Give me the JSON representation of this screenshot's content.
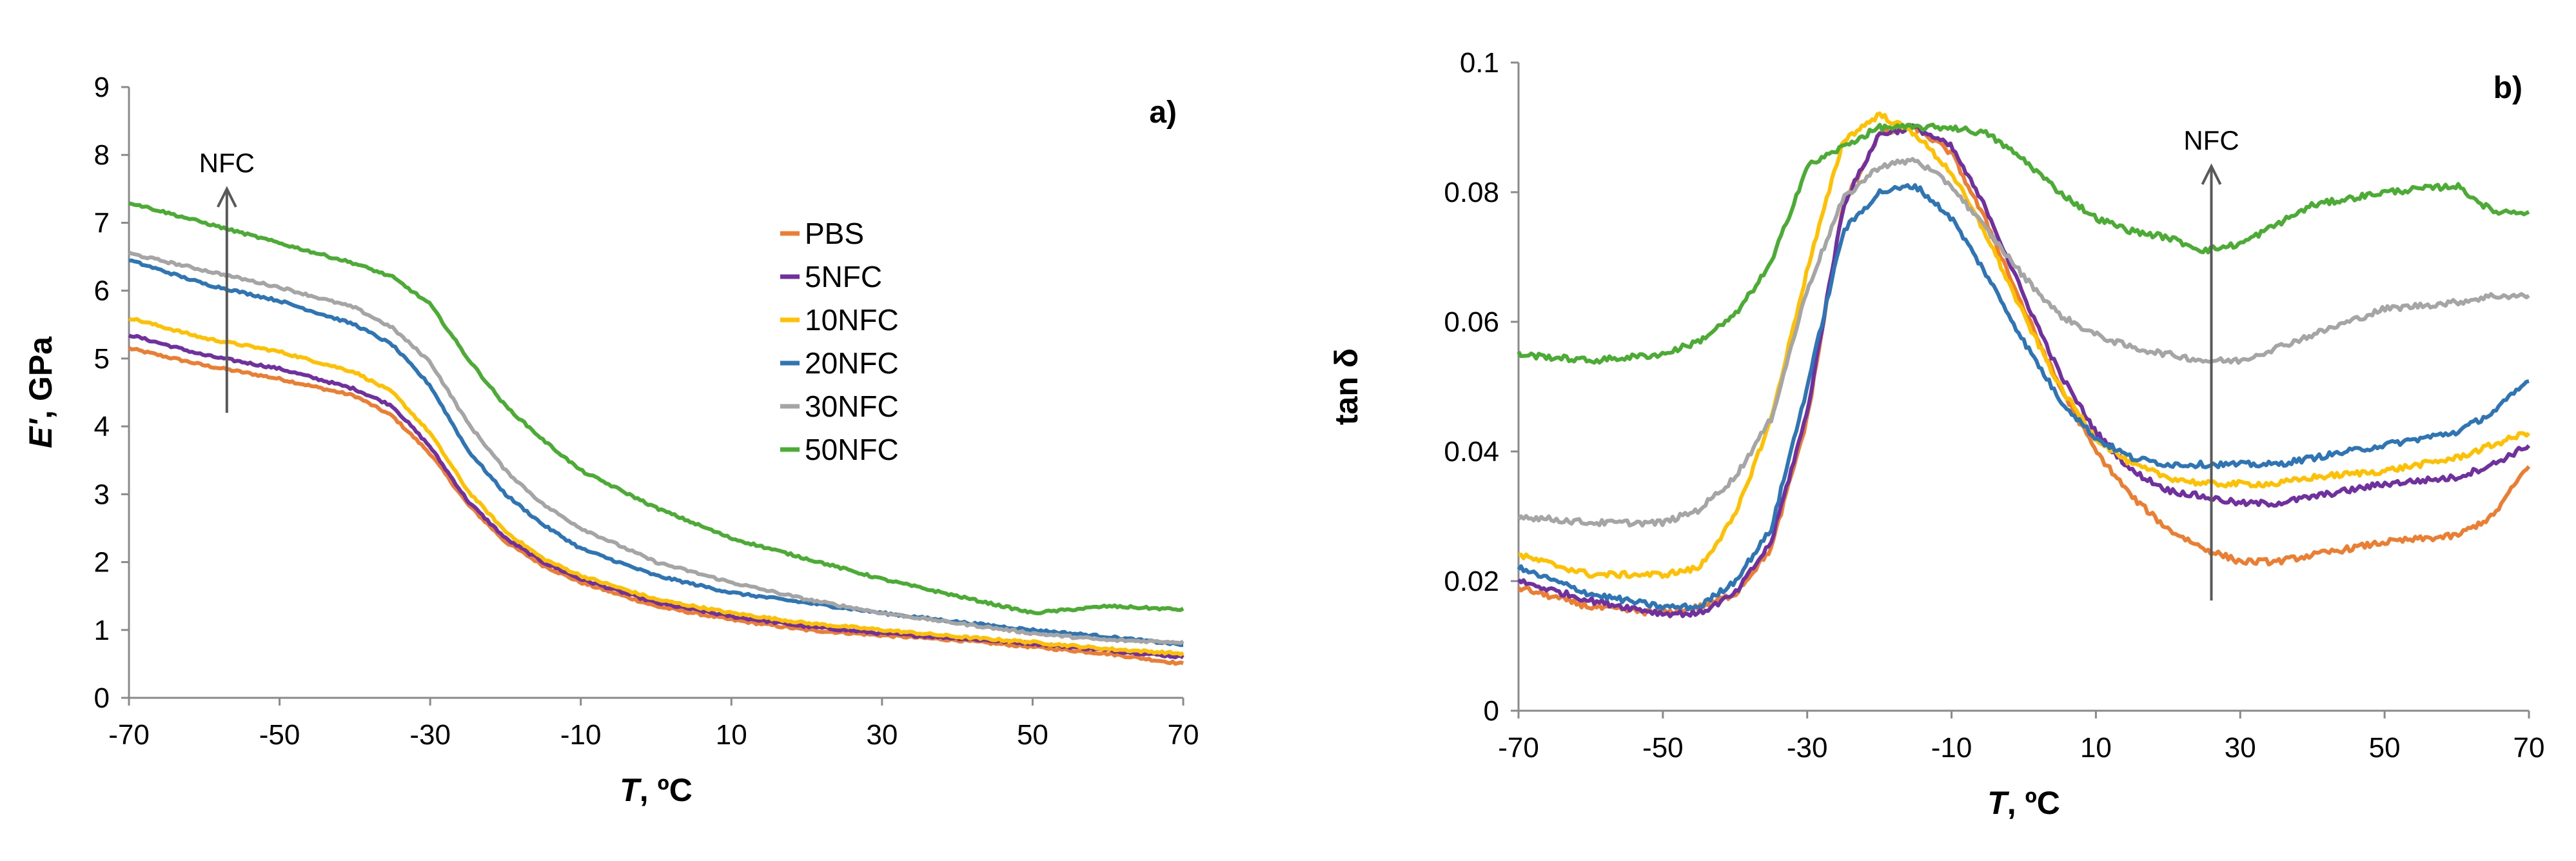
{
  "chart_data": [
    {
      "type": "line",
      "panel_label": "a)",
      "xlabel_italic": "T",
      "xlabel_rest": ", ºC",
      "ylabel_italic": "E'",
      "ylabel_rest": ", GPa",
      "xlim": [
        -70,
        70
      ],
      "ylim": [
        0,
        9
      ],
      "x_ticks": [
        -70,
        -50,
        -30,
        -10,
        10,
        30,
        50,
        70
      ],
      "y_ticks": [
        0,
        1,
        2,
        3,
        4,
        5,
        6,
        7,
        8,
        9
      ],
      "legend_position": "upper-center",
      "annotation": {
        "text": "NFC",
        "x": -57,
        "y_from": 4.2,
        "y_to": 7.5
      },
      "x": [
        -70,
        -60,
        -50,
        -40,
        -35,
        -30,
        -25,
        -20,
        -15,
        -10,
        0,
        10,
        20,
        30,
        40,
        50,
        60,
        70
      ],
      "series": [
        {
          "name": "PBS",
          "color": "#ED7D31",
          "values": [
            5.15,
            4.9,
            4.7,
            4.45,
            4.15,
            3.6,
            2.85,
            2.3,
            1.95,
            1.7,
            1.35,
            1.15,
            1.0,
            0.92,
            0.85,
            0.75,
            0.65,
            0.5
          ]
        },
        {
          "name": "5NFC",
          "color": "#7030A0",
          "values": [
            5.35,
            5.05,
            4.85,
            4.55,
            4.3,
            3.7,
            2.9,
            2.35,
            2.0,
            1.75,
            1.4,
            1.2,
            1.05,
            0.95,
            0.88,
            0.8,
            0.7,
            0.6
          ]
        },
        {
          "name": "10NFC",
          "color": "#FFC000",
          "values": [
            5.6,
            5.3,
            5.1,
            4.8,
            4.5,
            3.9,
            3.05,
            2.45,
            2.05,
            1.8,
            1.45,
            1.25,
            1.1,
            1.0,
            0.9,
            0.82,
            0.72,
            0.65
          ]
        },
        {
          "name": "20NFC",
          "color": "#2E75B6",
          "values": [
            6.45,
            6.1,
            5.85,
            5.5,
            5.2,
            4.6,
            3.65,
            3.0,
            2.55,
            2.2,
            1.8,
            1.55,
            1.4,
            1.25,
            1.12,
            1.0,
            0.9,
            0.78
          ]
        },
        {
          "name": "30NFC",
          "color": "#A5A5A5",
          "values": [
            6.55,
            6.3,
            6.05,
            5.75,
            5.45,
            4.95,
            4.05,
            3.35,
            2.85,
            2.5,
            2.0,
            1.7,
            1.45,
            1.25,
            1.1,
            0.95,
            0.85,
            0.82
          ]
        },
        {
          "name": "50NFC",
          "color": "#4BAC34",
          "values": [
            7.3,
            7.0,
            6.7,
            6.4,
            6.2,
            5.8,
            5.0,
            4.3,
            3.8,
            3.35,
            2.8,
            2.35,
            2.05,
            1.75,
            1.5,
            1.25,
            1.35,
            1.3
          ]
        }
      ]
    },
    {
      "type": "line",
      "panel_label": "b)",
      "xlabel_italic": "T",
      "xlabel_rest": ", ºC",
      "ylabel": "tan δ",
      "xlim": [
        -70,
        70
      ],
      "ylim": [
        0,
        0.1
      ],
      "x_ticks": [
        -70,
        -50,
        -30,
        -10,
        10,
        30,
        50,
        70
      ],
      "y_ticks": [
        0,
        0.02,
        0.04,
        0.06,
        0.08,
        0.1
      ],
      "y_tick_labels": [
        "0",
        "0.02",
        "0.04",
        "0.06",
        "0.08",
        "0.1"
      ],
      "annotation": {
        "text": "NFC",
        "x": 26,
        "y_from": 0.017,
        "y_to": 0.084
      },
      "x": [
        -70,
        -60,
        -50,
        -45,
        -40,
        -35,
        -30,
        -25,
        -20,
        -15,
        -10,
        -5,
        0,
        5,
        10,
        15,
        20,
        25,
        30,
        35,
        40,
        50,
        60,
        65,
        70
      ],
      "series": [
        {
          "name": "PBS",
          "color": "#ED7D31",
          "values": [
            0.019,
            0.016,
            0.015,
            0.016,
            0.018,
            0.025,
            0.045,
            0.078,
            0.089,
            0.09,
            0.086,
            0.075,
            0.062,
            0.05,
            0.04,
            0.033,
            0.028,
            0.025,
            0.023,
            0.023,
            0.024,
            0.026,
            0.027,
            0.03,
            0.038
          ]
        },
        {
          "name": "5NFC",
          "color": "#7030A0",
          "values": [
            0.02,
            0.017,
            0.015,
            0.015,
            0.018,
            0.026,
            0.046,
            0.078,
            0.089,
            0.09,
            0.087,
            0.077,
            0.064,
            0.052,
            0.043,
            0.037,
            0.034,
            0.033,
            0.032,
            0.032,
            0.033,
            0.035,
            0.036,
            0.038,
            0.041
          ]
        },
        {
          "name": "10NFC",
          "color": "#FFC000",
          "values": [
            0.024,
            0.021,
            0.021,
            0.022,
            0.03,
            0.045,
            0.068,
            0.088,
            0.092,
            0.089,
            0.083,
            0.073,
            0.061,
            0.05,
            0.042,
            0.038,
            0.036,
            0.035,
            0.035,
            0.035,
            0.036,
            0.037,
            0.039,
            0.041,
            0.043
          ]
        },
        {
          "name": "20NFC",
          "color": "#2E75B6",
          "values": [
            0.022,
            0.018,
            0.016,
            0.016,
            0.02,
            0.028,
            0.05,
            0.074,
            0.08,
            0.081,
            0.076,
            0.067,
            0.057,
            0.048,
            0.042,
            0.039,
            0.038,
            0.038,
            0.038,
            0.038,
            0.039,
            0.041,
            0.043,
            0.046,
            0.051
          ]
        },
        {
          "name": "30NFC",
          "color": "#A5A5A5",
          "values": [
            0.03,
            0.029,
            0.029,
            0.031,
            0.036,
            0.045,
            0.065,
            0.079,
            0.084,
            0.085,
            0.081,
            0.074,
            0.067,
            0.061,
            0.058,
            0.056,
            0.055,
            0.054,
            0.054,
            0.056,
            0.058,
            0.062,
            0.063,
            0.064,
            0.064
          ]
        },
        {
          "name": "50NFC",
          "color": "#4BAC34",
          "values": [
            0.055,
            0.054,
            0.055,
            0.057,
            0.061,
            0.069,
            0.084,
            0.087,
            0.09,
            0.09,
            0.09,
            0.089,
            0.085,
            0.08,
            0.076,
            0.074,
            0.073,
            0.071,
            0.072,
            0.075,
            0.078,
            0.08,
            0.081,
            0.077,
            0.077
          ]
        }
      ]
    }
  ]
}
